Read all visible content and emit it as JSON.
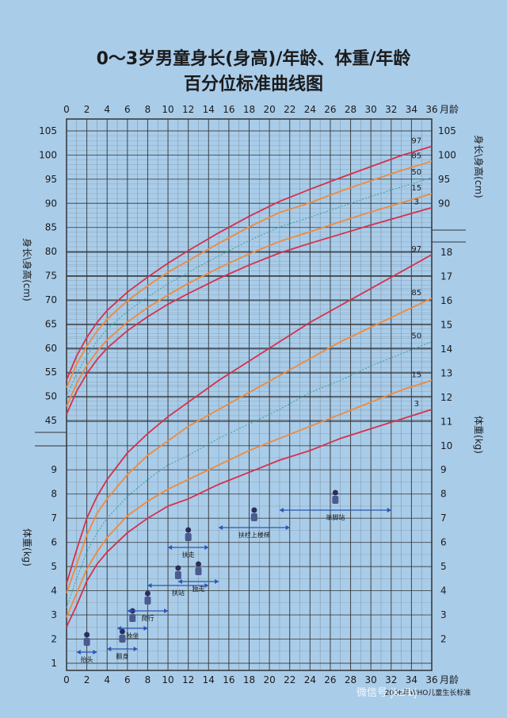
{
  "title": "0～3岁男童身长(身高)/年龄、体重/年龄",
  "subtitle": "百分位标准曲线图",
  "watermark": "微信号 jkzlbj",
  "footer_note": "2006年WHO儿童生长标准",
  "colors": {
    "background": "#a9cce9",
    "curve_3_97": "#d7304a",
    "curve_15_85": "#f08a3c",
    "curve_50": "#3aa7a0",
    "grid": "#333333"
  },
  "chart_data": {
    "type": "line",
    "x_unit": "月龄",
    "x_ticks": [
      0,
      2,
      4,
      6,
      8,
      10,
      12,
      14,
      16,
      18,
      20,
      22,
      24,
      26,
      28,
      30,
      32,
      34,
      36
    ],
    "xlim": [
      0,
      36
    ],
    "length": {
      "axis_label_left": "身长\\身高(cm)",
      "axis_label_right": "身长\\身高(cm)",
      "unit": "cm",
      "ylim": [
        45,
        105
      ],
      "ticks_left": [
        45,
        50,
        55,
        60,
        65,
        70,
        75,
        80,
        85,
        90,
        95,
        100,
        105
      ],
      "ticks_right": [
        90,
        95,
        100,
        105
      ],
      "x": [
        0,
        1,
        2,
        3,
        4,
        6,
        8,
        10,
        12,
        15,
        18,
        21,
        24,
        27,
        30,
        33,
        36
      ],
      "series": [
        {
          "name": "3",
          "values": [
            46.3,
            51.1,
            54.7,
            57.6,
            60.0,
            63.6,
            66.5,
            69.1,
            71.3,
            74.4,
            77.2,
            79.7,
            81.7,
            83.6,
            85.5,
            87.3,
            89.1
          ]
        },
        {
          "name": "15",
          "values": [
            47.9,
            52.7,
            56.4,
            59.3,
            61.7,
            65.4,
            68.4,
            71.0,
            73.4,
            76.6,
            79.5,
            82.1,
            84.1,
            86.2,
            88.2,
            90.1,
            92.0
          ]
        },
        {
          "name": "50",
          "values": [
            49.9,
            54.7,
            58.4,
            61.4,
            63.9,
            67.6,
            70.6,
            73.3,
            75.7,
            79.1,
            82.3,
            85.1,
            87.1,
            89.3,
            91.4,
            93.4,
            95.3
          ]
        },
        {
          "name": "85",
          "values": [
            51.8,
            56.7,
            60.4,
            63.5,
            66.0,
            69.8,
            72.9,
            75.7,
            78.1,
            81.7,
            85.1,
            88.1,
            90.1,
            92.5,
            94.7,
            96.8,
            98.7
          ]
        },
        {
          "name": "97",
          "values": [
            53.4,
            58.4,
            62.2,
            65.3,
            67.8,
            71.6,
            74.7,
            77.6,
            80.2,
            83.9,
            87.3,
            90.4,
            92.9,
            95.3,
            97.6,
            99.9,
            101.8
          ]
        }
      ]
    },
    "weight": {
      "axis_label_left": "体重(kg)",
      "axis_label_right": "体重(kg)",
      "unit": "kg",
      "ylim": [
        1,
        18
      ],
      "ticks_left": [
        1,
        2,
        3,
        4,
        5,
        6,
        7,
        8,
        9
      ],
      "ticks_right": [
        2,
        3,
        4,
        5,
        6,
        7,
        8,
        9,
        10,
        11,
        12,
        13,
        14,
        15,
        16,
        17,
        18
      ],
      "x": [
        0,
        1,
        2,
        3,
        4,
        6,
        8,
        10,
        12,
        15,
        18,
        21,
        24,
        27,
        30,
        33,
        36
      ],
      "series": [
        {
          "name": "3",
          "values": [
            2.5,
            3.4,
            4.4,
            5.1,
            5.6,
            6.4,
            7.0,
            7.5,
            7.8,
            8.4,
            8.9,
            9.4,
            9.8,
            10.3,
            10.7,
            11.1,
            11.5
          ]
        },
        {
          "name": "15",
          "values": [
            2.9,
            3.9,
            4.9,
            5.6,
            6.2,
            7.1,
            7.7,
            8.2,
            8.6,
            9.2,
            9.8,
            10.3,
            10.8,
            11.3,
            11.8,
            12.3,
            12.7
          ]
        },
        {
          "name": "50",
          "values": [
            3.3,
            4.5,
            5.6,
            6.4,
            7.0,
            7.9,
            8.6,
            9.2,
            9.6,
            10.3,
            10.9,
            11.5,
            12.2,
            12.7,
            13.3,
            13.8,
            14.3
          ]
        },
        {
          "name": "85",
          "values": [
            3.9,
            5.1,
            6.3,
            7.2,
            7.8,
            8.8,
            9.6,
            10.2,
            10.8,
            11.5,
            12.2,
            12.9,
            13.6,
            14.3,
            14.9,
            15.5,
            16.1
          ]
        },
        {
          "name": "97",
          "values": [
            4.3,
            5.7,
            7.0,
            7.9,
            8.6,
            9.7,
            10.5,
            11.2,
            11.8,
            12.7,
            13.5,
            14.3,
            15.1,
            15.8,
            16.5,
            17.2,
            17.9
          ]
        }
      ]
    },
    "milestones": [
      {
        "label": "抬头",
        "x_start": 1,
        "x_end": 3
      },
      {
        "label": "翻身",
        "x_start": 4,
        "x_end": 7
      },
      {
        "label": "独坐",
        "x_start": 5,
        "x_end": 8
      },
      {
        "label": "爬行",
        "x_start": 6,
        "x_end": 10
      },
      {
        "label": "扶站",
        "x_start": 8,
        "x_end": 14
      },
      {
        "label": "扶走",
        "x_start": 10,
        "x_end": 14
      },
      {
        "label": "独走",
        "x_start": 11,
        "x_end": 15
      },
      {
        "label": "扶栏上楼梯",
        "x_start": 15,
        "x_end": 22
      },
      {
        "label": "单脚站",
        "x_start": 21,
        "x_end": 32
      }
    ]
  }
}
